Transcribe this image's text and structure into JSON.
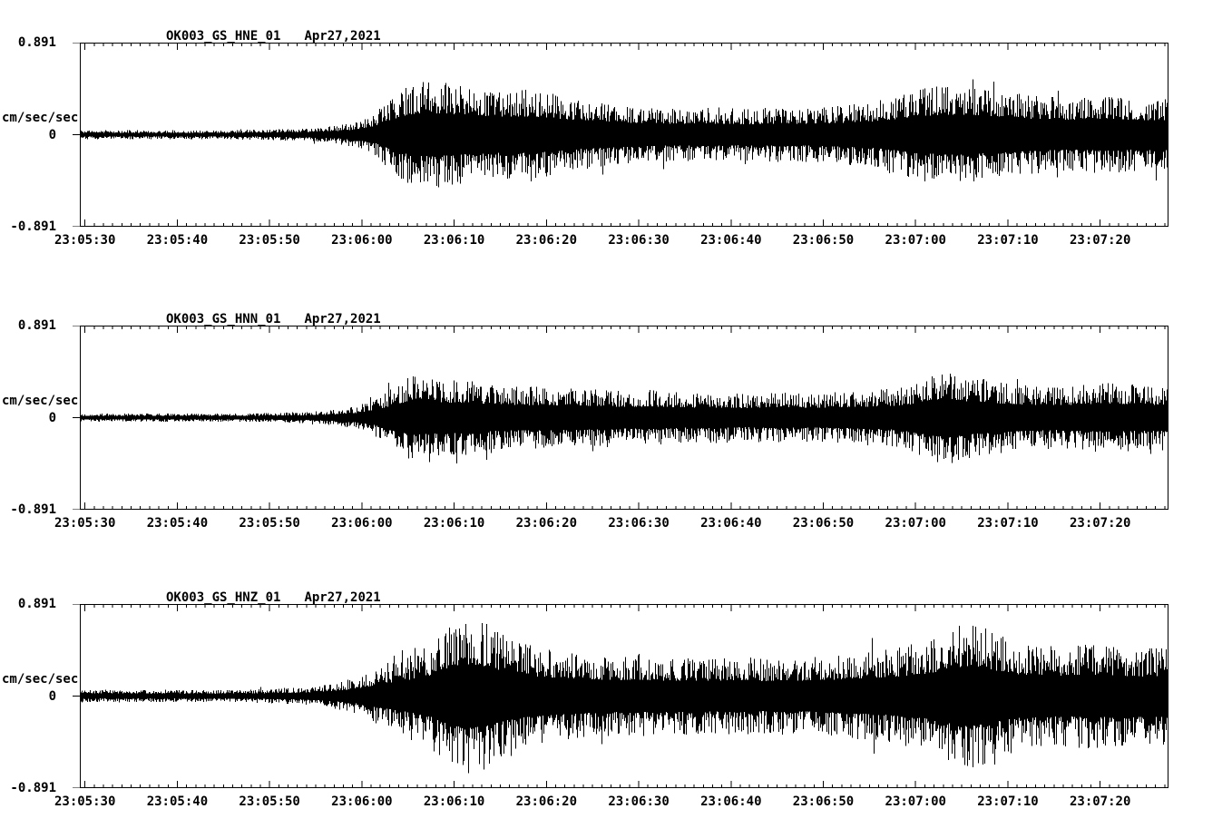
{
  "window": {
    "background_color": "#ffffff",
    "foreground_color": "#000000"
  },
  "panels": [
    {
      "id": "hne",
      "station": "OK003_GS_HNE_01",
      "date": "Apr27,2021",
      "y_units": "cm/sec/sec",
      "y_max_label": "0.891",
      "y_zero_label": "0",
      "y_min_label": "-0.891"
    },
    {
      "id": "hnn",
      "station": "OK003_GS_HNN_01",
      "date": "Apr27,2021",
      "y_units": "cm/sec/sec",
      "y_max_label": "0.891",
      "y_zero_label": "0",
      "y_min_label": "-0.891"
    },
    {
      "id": "hnz",
      "station": "OK003_GS_HNZ_01",
      "date": "Apr27,2021",
      "y_units": "cm/sec/sec",
      "y_max_label": "0.891",
      "y_zero_label": "0",
      "y_min_label": "-0.891"
    }
  ],
  "x_axis": {
    "tick_labels": [
      "23:05:30",
      "23:05:40",
      "23:05:50",
      "23:06:00",
      "23:06:10",
      "23:06:20",
      "23:06:30",
      "23:06:40",
      "23:06:50",
      "23:07:00",
      "23:07:10",
      "23:07:20"
    ],
    "major_tick_interval_sec": 10,
    "minor_tick_interval_sec": 1
  },
  "chart_data": [
    {
      "type": "line",
      "kind": "seismogram",
      "title": "OK003_GS_HNE_01  Apr27,2021",
      "series": "OK003_GS_HNE_01",
      "ylabel": "cm/sec/sec",
      "ylim": [
        -0.891,
        0.891
      ],
      "y_tick_values": [
        0.891,
        0,
        -0.891
      ],
      "x_tick_labels": [
        "23:05:30",
        "23:05:40",
        "23:05:50",
        "23:06:00",
        "23:06:10",
        "23:06:20",
        "23:06:30",
        "23:06:40",
        "23:06:50",
        "23:07:00",
        "23:07:10",
        "23:07:20"
      ],
      "x_span_sec": 118,
      "envelope_interval_sec": 2,
      "envelope_cm_s2": [
        0.045,
        0.045,
        0.042,
        0.045,
        0.043,
        0.045,
        0.044,
        0.046,
        0.045,
        0.047,
        0.05,
        0.055,
        0.06,
        0.07,
        0.09,
        0.13,
        0.2,
        0.38,
        0.5,
        0.52,
        0.5,
        0.47,
        0.45,
        0.43,
        0.44,
        0.42,
        0.38,
        0.34,
        0.32,
        0.3,
        0.28,
        0.27,
        0.26,
        0.26,
        0.27,
        0.26,
        0.25,
        0.26,
        0.27,
        0.26,
        0.27,
        0.28,
        0.3,
        0.32,
        0.36,
        0.42,
        0.46,
        0.48,
        0.47,
        0.45,
        0.43,
        0.4,
        0.38,
        0.37,
        0.36,
        0.37,
        0.38,
        0.36,
        0.35,
        0.35
      ]
    },
    {
      "type": "line",
      "kind": "seismogram",
      "title": "OK003_GS_HNN_01  Apr27,2021",
      "series": "OK003_GS_HNN_01",
      "ylabel": "cm/sec/sec",
      "ylim": [
        -0.891,
        0.891
      ],
      "y_tick_values": [
        0.891,
        0,
        -0.891
      ],
      "x_tick_labels": [
        "23:05:30",
        "23:05:40",
        "23:05:50",
        "23:06:00",
        "23:06:10",
        "23:06:20",
        "23:06:30",
        "23:06:40",
        "23:06:50",
        "23:07:00",
        "23:07:10",
        "23:07:20"
      ],
      "x_span_sec": 118,
      "envelope_interval_sec": 2,
      "envelope_cm_s2": [
        0.04,
        0.04,
        0.04,
        0.04,
        0.04,
        0.04,
        0.04,
        0.04,
        0.04,
        0.04,
        0.045,
        0.05,
        0.055,
        0.065,
        0.08,
        0.11,
        0.18,
        0.3,
        0.42,
        0.38,
        0.36,
        0.37,
        0.33,
        0.31,
        0.3,
        0.3,
        0.29,
        0.3,
        0.28,
        0.26,
        0.26,
        0.27,
        0.25,
        0.24,
        0.25,
        0.24,
        0.23,
        0.24,
        0.25,
        0.24,
        0.24,
        0.25,
        0.26,
        0.27,
        0.28,
        0.32,
        0.42,
        0.46,
        0.4,
        0.38,
        0.34,
        0.32,
        0.31,
        0.3,
        0.31,
        0.33,
        0.34,
        0.32,
        0.31,
        0.32
      ]
    },
    {
      "type": "line",
      "kind": "seismogram",
      "title": "OK003_GS_HNZ_01  Apr27,2021",
      "series": "OK003_GS_HNZ_01",
      "ylabel": "cm/sec/sec",
      "ylim": [
        -0.891,
        0.891
      ],
      "y_tick_values": [
        0.891,
        0,
        -0.891
      ],
      "x_tick_labels": [
        "23:05:30",
        "23:05:40",
        "23:05:50",
        "23:06:00",
        "23:06:10",
        "23:06:20",
        "23:06:30",
        "23:06:40",
        "23:06:50",
        "23:07:00",
        "23:07:10",
        "23:07:20"
      ],
      "x_span_sec": 118,
      "envelope_interval_sec": 2,
      "envelope_cm_s2": [
        0.065,
        0.06,
        0.06,
        0.06,
        0.06,
        0.06,
        0.06,
        0.06,
        0.06,
        0.065,
        0.07,
        0.075,
        0.08,
        0.1,
        0.13,
        0.18,
        0.26,
        0.33,
        0.4,
        0.5,
        0.68,
        0.76,
        0.72,
        0.6,
        0.52,
        0.46,
        0.44,
        0.42,
        0.4,
        0.38,
        0.4,
        0.38,
        0.37,
        0.38,
        0.36,
        0.37,
        0.38,
        0.36,
        0.38,
        0.37,
        0.38,
        0.4,
        0.42,
        0.44,
        0.46,
        0.5,
        0.55,
        0.62,
        0.72,
        0.68,
        0.58,
        0.52,
        0.5,
        0.48,
        0.5,
        0.52,
        0.5,
        0.48,
        0.47,
        0.48
      ]
    }
  ]
}
